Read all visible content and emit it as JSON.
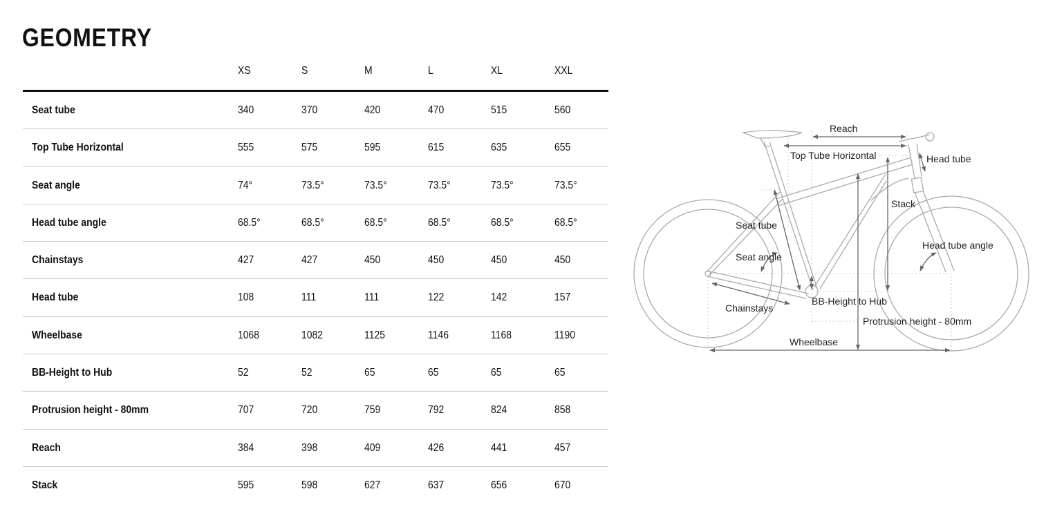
{
  "title": "GEOMETRY",
  "table": {
    "sizes": [
      "XS",
      "S",
      "M",
      "L",
      "XL",
      "XXL"
    ],
    "rows": [
      {
        "label": "Seat tube",
        "values": [
          "340",
          "370",
          "420",
          "470",
          "515",
          "560"
        ]
      },
      {
        "label": "Top Tube Horizontal",
        "values": [
          "555",
          "575",
          "595",
          "615",
          "635",
          "655"
        ]
      },
      {
        "label": "Seat angle",
        "values": [
          "74°",
          "73.5°",
          "73.5°",
          "73.5°",
          "73.5°",
          "73.5°"
        ]
      },
      {
        "label": "Head tube angle",
        "values": [
          "68.5°",
          "68.5°",
          "68.5°",
          "68.5°",
          "68.5°",
          "68.5°"
        ]
      },
      {
        "label": "Chainstays",
        "values": [
          "427",
          "427",
          "450",
          "450",
          "450",
          "450"
        ]
      },
      {
        "label": "Head tube",
        "values": [
          "108",
          "111",
          "111",
          "122",
          "142",
          "157"
        ]
      },
      {
        "label": "Wheelbase",
        "values": [
          "1068",
          "1082",
          "1125",
          "1146",
          "1168",
          "1190"
        ]
      },
      {
        "label": "BB-Height to Hub",
        "values": [
          "52",
          "52",
          "65",
          "65",
          "65",
          "65"
        ]
      },
      {
        "label": "Protrusion height - 80mm",
        "values": [
          "707",
          "720",
          "759",
          "792",
          "824",
          "858"
        ]
      },
      {
        "label": "Reach",
        "values": [
          "384",
          "398",
          "409",
          "426",
          "441",
          "457"
        ]
      },
      {
        "label": "Stack",
        "values": [
          "595",
          "598",
          "627",
          "637",
          "656",
          "670"
        ]
      }
    ]
  },
  "diagram": {
    "labels": {
      "reach": "Reach",
      "top_tube": "Top Tube Horizontal",
      "head_tube": "Head tube",
      "stack": "Stack",
      "seat_tube": "Seat tube",
      "head_tube_angle": "Head tube angle",
      "seat_angle": "Seat angle",
      "bb_height": "BB-Height to Hub",
      "chainstays": "Chainstays",
      "protrusion": "Protrusion height - 80mm",
      "wheelbase": "Wheelbase"
    }
  }
}
